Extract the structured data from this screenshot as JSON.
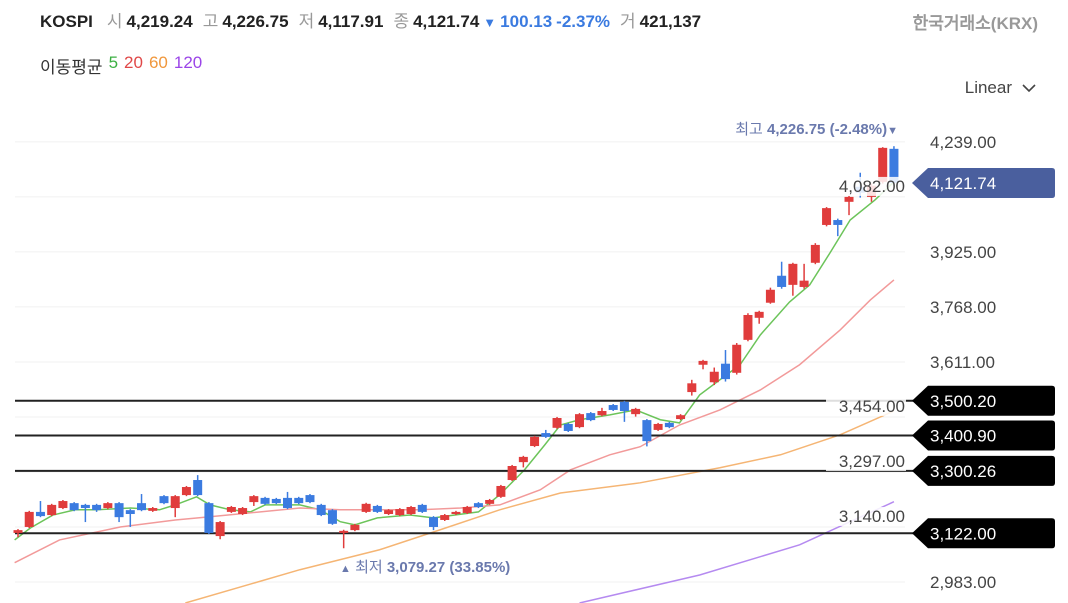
{
  "header": {
    "symbol": "KOSPI",
    "open_label": "시",
    "open": "4,219.24",
    "high_label": "고",
    "high": "4,226.75",
    "low_label": "저",
    "low": "4,117.91",
    "close_label": "종",
    "close": "4,121.74",
    "change_arrow": "▼",
    "change": "100.13",
    "change_pct": "-2.37%",
    "volume_label": "거",
    "volume": "421,137",
    "source": "한국거래소(KRX)"
  },
  "moving_average": {
    "label": "이동평균",
    "periods": [
      {
        "label": "5",
        "color": "#3cb043"
      },
      {
        "label": "20",
        "color": "#e04848"
      },
      {
        "label": "60",
        "color": "#f0973c"
      },
      {
        "label": "120",
        "color": "#9b45e8"
      }
    ]
  },
  "scale_selector": {
    "value": "Linear"
  },
  "colors": {
    "up": "#e03c3c",
    "down": "#3b7be0",
    "current_tag": "#4a5f9e",
    "level_tag": "#000000",
    "annotation": "#6a79ad"
  },
  "chart_data": {
    "type": "candlestick",
    "y_axis_ticks": [
      "4,239.00",
      "4,082.00",
      "3,925.00",
      "3,768.00",
      "3,611.00",
      "3,454.00",
      "3,297.00",
      "3,140.00",
      "2,983.00"
    ],
    "y_axis_tick_values": [
      4239,
      4082,
      3925,
      3768,
      3611,
      3454,
      3297,
      3140,
      2983
    ],
    "ylim": [
      2923,
      4644
    ],
    "grid": true,
    "current_price": "4,121.74",
    "current_price_value": 4121.74,
    "levels": [
      {
        "label": "3,500.20",
        "value": 3500.2
      },
      {
        "label": "3,400.90",
        "value": 3400.9
      },
      {
        "label": "3,300.26",
        "value": 3300.26
      },
      {
        "label": "3,122.00",
        "value": 3122.0
      }
    ],
    "max_annotation": {
      "label": "최고",
      "value": "4,226.75",
      "pct": "(-2.48%)",
      "arrow": "▼"
    },
    "min_annotation": {
      "label": "최저",
      "value": "3,079.27",
      "pct": "(33.85%)",
      "arrow": "▲"
    },
    "candles_ohlc": [
      [
        3123,
        3134,
        3111,
        3131
      ],
      [
        3140,
        3186,
        3137,
        3183
      ],
      [
        3183,
        3214,
        3168,
        3171
      ],
      [
        3174,
        3206,
        3171,
        3203
      ],
      [
        3194,
        3217,
        3191,
        3214
      ],
      [
        3208,
        3211,
        3185,
        3188
      ],
      [
        3203,
        3206,
        3154,
        3194
      ],
      [
        3203,
        3206,
        3183,
        3188
      ],
      [
        3194,
        3211,
        3191,
        3208
      ],
      [
        3208,
        3211,
        3154,
        3168
      ],
      [
        3188,
        3191,
        3140,
        3177
      ],
      [
        3208,
        3234,
        3185,
        3188
      ],
      [
        3186,
        3197,
        3183,
        3194
      ],
      [
        3228,
        3231,
        3205,
        3208
      ],
      [
        3194,
        3231,
        3168,
        3228
      ],
      [
        3231,
        3257,
        3228,
        3254
      ],
      [
        3274,
        3288,
        3228,
        3231
      ],
      [
        3208,
        3211,
        3120,
        3123
      ],
      [
        3114,
        3157,
        3105,
        3154
      ],
      [
        3183,
        3200,
        3180,
        3197
      ],
      [
        3177,
        3197,
        3174,
        3194
      ],
      [
        3211,
        3231,
        3200,
        3228
      ],
      [
        3223,
        3226,
        3203,
        3206
      ],
      [
        3220,
        3223,
        3205,
        3208
      ],
      [
        3223,
        3240,
        3191,
        3194
      ],
      [
        3223,
        3226,
        3205,
        3208
      ],
      [
        3231,
        3234,
        3208,
        3211
      ],
      [
        3203,
        3206,
        3171,
        3174
      ],
      [
        3188,
        3191,
        3146,
        3149
      ],
      [
        3123,
        3132,
        3079.27,
        3129
      ],
      [
        3131,
        3149,
        3128,
        3146
      ],
      [
        3183,
        3209,
        3180,
        3206
      ],
      [
        3200,
        3203,
        3180,
        3183
      ],
      [
        3177,
        3191,
        3174,
        3188
      ],
      [
        3174,
        3194,
        3171,
        3191
      ],
      [
        3177,
        3200,
        3174,
        3197
      ],
      [
        3203,
        3206,
        3180,
        3183
      ],
      [
        3168,
        3171,
        3131,
        3140
      ],
      [
        3160,
        3177,
        3157,
        3174
      ],
      [
        3177,
        3186,
        3174,
        3183
      ],
      [
        3180,
        3200,
        3177,
        3197
      ],
      [
        3208,
        3211,
        3194,
        3197
      ],
      [
        3206,
        3220,
        3203,
        3217
      ],
      [
        3226,
        3260,
        3223,
        3257
      ],
      [
        3274,
        3317,
        3271,
        3314
      ],
      [
        3325,
        3343,
        3310,
        3340
      ],
      [
        3371,
        3400,
        3368,
        3397
      ],
      [
        3408,
        3417,
        3394,
        3397
      ],
      [
        3423,
        3454,
        3420,
        3451
      ],
      [
        3434,
        3437,
        3411,
        3414
      ],
      [
        3425,
        3465,
        3422,
        3462
      ],
      [
        3465,
        3468,
        3442,
        3445
      ],
      [
        3459,
        3480,
        3456,
        3471
      ],
      [
        3488,
        3491,
        3471,
        3474
      ],
      [
        3497,
        3500,
        3440,
        3471
      ],
      [
        3462,
        3480,
        3455,
        3477
      ],
      [
        3445,
        3448,
        3370,
        3385
      ],
      [
        3417,
        3437,
        3414,
        3434
      ],
      [
        3437,
        3440,
        3422,
        3425
      ],
      [
        3448,
        3462,
        3445,
        3459
      ],
      [
        3525,
        3560,
        3515,
        3550
      ],
      [
        3603,
        3617,
        3590,
        3614
      ],
      [
        3553,
        3595,
        3545,
        3583
      ],
      [
        3606,
        3645,
        3555,
        3562
      ],
      [
        3580,
        3665,
        3575,
        3660
      ],
      [
        3674,
        3750,
        3670,
        3745
      ],
      [
        3737,
        3757,
        3720,
        3754
      ],
      [
        3780,
        3823,
        3777,
        3817
      ],
      [
        3857,
        3897,
        3820,
        3825
      ],
      [
        3831,
        3894,
        3800,
        3891
      ],
      [
        3825,
        3891,
        3820,
        3843
      ],
      [
        3894,
        3950,
        3890,
        3945
      ],
      [
        4002,
        4053,
        3998,
        4050
      ],
      [
        4016,
        4020,
        3970,
        4002
      ],
      [
        4068,
        4085,
        4030,
        4082
      ],
      [
        4111,
        4151,
        4080,
        4094
      ],
      [
        4082,
        4120,
        4068,
        4114
      ],
      [
        4125,
        4224,
        4120,
        4222
      ],
      [
        4219.24,
        4226.75,
        4117.91,
        4121.74
      ]
    ],
    "moving_averages": [
      {
        "period": "5",
        "color": "#6cc45a",
        "points": [
          [
            -0.3,
            3103
          ],
          [
            1.1,
            3137
          ],
          [
            3.1,
            3174
          ],
          [
            5.1,
            3189
          ],
          [
            7,
            3189
          ],
          [
            10,
            3194
          ],
          [
            12.6,
            3189
          ],
          [
            14,
            3203
          ],
          [
            15.9,
            3226
          ],
          [
            17.1,
            3203
          ],
          [
            18.9,
            3189
          ],
          [
            20.7,
            3183
          ],
          [
            22,
            3203
          ],
          [
            25.1,
            3203
          ],
          [
            26.9,
            3189
          ],
          [
            28.7,
            3155
          ],
          [
            30,
            3146
          ],
          [
            32,
            3166
          ],
          [
            34.9,
            3174
          ],
          [
            37,
            3166
          ],
          [
            38.9,
            3174
          ],
          [
            41,
            3183
          ],
          [
            42.9,
            3232
          ],
          [
            45.1,
            3303
          ],
          [
            46.9,
            3374
          ],
          [
            48.3,
            3431
          ],
          [
            50,
            3446
          ],
          [
            52.7,
            3460
          ],
          [
            55,
            3474
          ],
          [
            57.2,
            3446
          ],
          [
            58.9,
            3437
          ],
          [
            60.7,
            3517
          ],
          [
            62.5,
            3560
          ],
          [
            64.3,
            3603
          ],
          [
            66.1,
            3688
          ],
          [
            68.7,
            3782
          ],
          [
            70.5,
            3831
          ],
          [
            72.3,
            3922
          ],
          [
            74.1,
            4016
          ],
          [
            76.3,
            4073
          ],
          [
            78,
            4125
          ]
        ]
      },
      {
        "period": "20",
        "color": "#f29a9a",
        "points": [
          [
            -0.3,
            3038
          ],
          [
            3.7,
            3103
          ],
          [
            9.1,
            3140
          ],
          [
            14,
            3160
          ],
          [
            17.1,
            3169
          ],
          [
            25.1,
            3194
          ],
          [
            28.7,
            3189
          ],
          [
            35.8,
            3189
          ],
          [
            39.4,
            3194
          ],
          [
            42.9,
            3203
          ],
          [
            46.5,
            3246
          ],
          [
            49.2,
            3303
          ],
          [
            52.7,
            3346
          ],
          [
            55.4,
            3369
          ],
          [
            58.9,
            3431
          ],
          [
            62.5,
            3474
          ],
          [
            66.1,
            3531
          ],
          [
            69.6,
            3603
          ],
          [
            73.2,
            3702
          ],
          [
            75.9,
            3788
          ],
          [
            78,
            3845
          ]
        ]
      },
      {
        "period": "60",
        "color": "#f5b574",
        "points": [
          [
            14.9,
            2923
          ],
          [
            25.1,
            3018
          ],
          [
            32.2,
            3075
          ],
          [
            37.6,
            3132
          ],
          [
            42.9,
            3189
          ],
          [
            48.3,
            3237
          ],
          [
            55.4,
            3266
          ],
          [
            62.5,
            3309
          ],
          [
            67.9,
            3346
          ],
          [
            73.2,
            3403
          ],
          [
            78,
            3471
          ]
        ]
      },
      {
        "period": "120",
        "color": "#b58af0",
        "points": [
          [
            50,
            2923
          ],
          [
            60.7,
            3003
          ],
          [
            69.6,
            3089
          ],
          [
            78,
            3212
          ]
        ]
      }
    ]
  }
}
